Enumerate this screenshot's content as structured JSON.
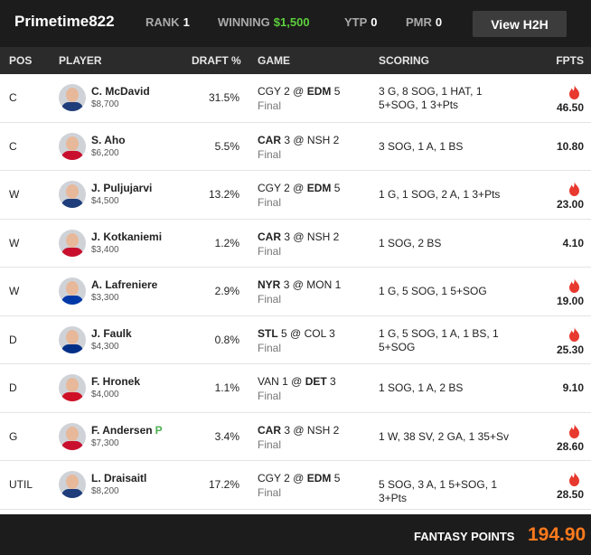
{
  "header": {
    "username": "Primetime822",
    "rank_label": "RANK",
    "rank_value": "1",
    "winning_label": "WINNING",
    "winning_value": "$1,500",
    "ytp_label": "YTP",
    "ytp_value": "0",
    "pmr_label": "PMR",
    "pmr_value": "0",
    "h2h_button": "View H2H"
  },
  "columns": {
    "pos": "POS",
    "player": "PLAYER",
    "draft": "DRAFT %",
    "game": "GAME",
    "scoring": "SCORING",
    "fpts": "FPTS"
  },
  "colors": {
    "accent_orange": "#ff7a1c",
    "flame_red": "#e8392e",
    "winning_green": "#5ccf3c",
    "badge_green": "#4caf50"
  },
  "rows": [
    {
      "pos": "C",
      "name": "C. McDavid",
      "badge": "",
      "salary": "$8,700",
      "draft": "31.5%",
      "team1": "CGY",
      "score1": "2",
      "sep": "@",
      "team2": "EDM",
      "score2": "5",
      "bold": 2,
      "status": "Final",
      "scoring": "3 G, 8 SOG, 1 HAT, 1 5+SOG, 1 3+Pts",
      "fpts": "46.50",
      "hot": true,
      "jersey": "#1e3d7a"
    },
    {
      "pos": "C",
      "name": "S. Aho",
      "badge": "",
      "salary": "$6,200",
      "draft": "5.5%",
      "team1": "CAR",
      "score1": "3",
      "sep": "@",
      "team2": "NSH",
      "score2": "2",
      "bold": 1,
      "status": "Final",
      "scoring": "3 SOG, 1 A, 1 BS",
      "fpts": "10.80",
      "hot": false,
      "jersey": "#c8102e"
    },
    {
      "pos": "W",
      "name": "J. Puljujarvi",
      "badge": "",
      "salary": "$4,500",
      "draft": "13.2%",
      "team1": "CGY",
      "score1": "2",
      "sep": "@",
      "team2": "EDM",
      "score2": "5",
      "bold": 2,
      "status": "Final",
      "scoring": "1 G, 1 SOG, 2 A, 1 3+Pts",
      "fpts": "23.00",
      "hot": true,
      "jersey": "#1e3d7a"
    },
    {
      "pos": "W",
      "name": "J. Kotkaniemi",
      "badge": "",
      "salary": "$3,400",
      "draft": "1.2%",
      "team1": "CAR",
      "score1": "3",
      "sep": "@",
      "team2": "NSH",
      "score2": "2",
      "bold": 1,
      "status": "Final",
      "scoring": "1 SOG, 2 BS",
      "fpts": "4.10",
      "hot": false,
      "jersey": "#c8102e"
    },
    {
      "pos": "W",
      "name": "A. Lafreniere",
      "badge": "",
      "salary": "$3,300",
      "draft": "2.9%",
      "team1": "NYR",
      "score1": "3",
      "sep": "@",
      "team2": "MON",
      "score2": "1",
      "bold": 1,
      "status": "Final",
      "scoring": "1 G, 5 SOG, 1 5+SOG",
      "fpts": "19.00",
      "hot": true,
      "jersey": "#0038a8"
    },
    {
      "pos": "D",
      "name": "J. Faulk",
      "badge": "",
      "salary": "$4,300",
      "draft": "0.8%",
      "team1": "STL",
      "score1": "5",
      "sep": "@",
      "team2": "COL",
      "score2": "3",
      "bold": 1,
      "status": "Final",
      "scoring": "1 G, 5 SOG, 1 A, 1 BS, 1 5+SOG",
      "fpts": "25.30",
      "hot": true,
      "jersey": "#002f87"
    },
    {
      "pos": "D",
      "name": "F. Hronek",
      "badge": "",
      "salary": "$4,000",
      "draft": "1.1%",
      "team1": "VAN",
      "score1": "1",
      "sep": "@",
      "team2": "DET",
      "score2": "3",
      "bold": 2,
      "status": "Final",
      "scoring": "1 SOG, 1 A, 2 BS",
      "fpts": "9.10",
      "hot": false,
      "jersey": "#ce1126"
    },
    {
      "pos": "G",
      "name": "F. Andersen",
      "badge": "P",
      "salary": "$7,300",
      "draft": "3.4%",
      "team1": "CAR",
      "score1": "3",
      "sep": "@",
      "team2": "NSH",
      "score2": "2",
      "bold": 1,
      "status": "Final",
      "scoring": "1 W, 38 SV, 2 GA, 1 35+Sv",
      "fpts": "28.60",
      "hot": true,
      "jersey": "#c8102e"
    },
    {
      "pos": "UTIL",
      "name": "L. Draisaitl",
      "badge": "",
      "salary": "$8,200",
      "draft": "17.2%",
      "team1": "CGY",
      "score1": "2",
      "sep": "@",
      "team2": "EDM",
      "score2": "5",
      "bold": 2,
      "status": "Final",
      "scoring": "5 SOG, 3 A, 1 5+SOG, 1 3+Pts",
      "fpts": "28.50",
      "hot": true,
      "jersey": "#1e3d7a"
    }
  ],
  "footer": {
    "label": "FANTASY POINTS",
    "value": "194.90"
  }
}
